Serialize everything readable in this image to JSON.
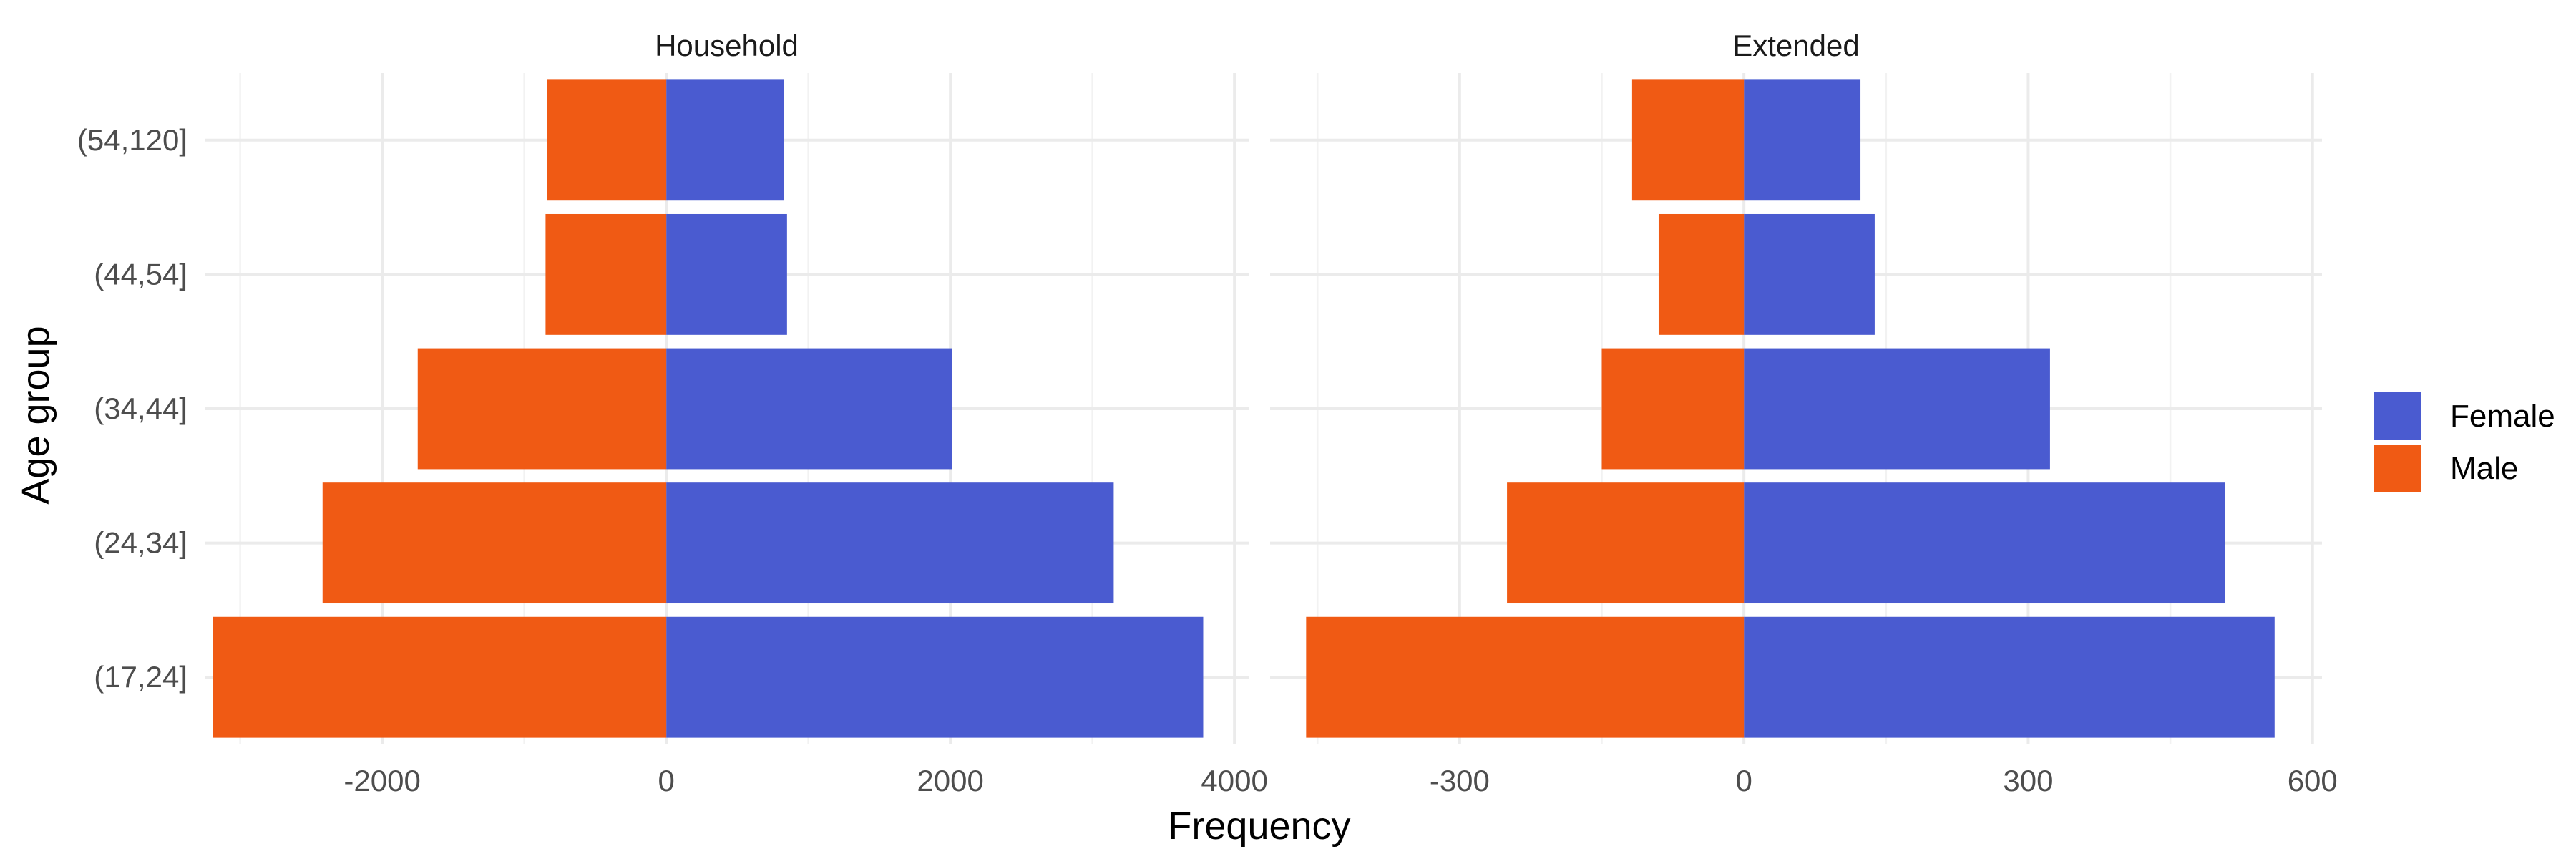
{
  "chart_data": {
    "type": "bar",
    "orientation": "horizontal",
    "subtype": "population-pyramid",
    "xlabel": "Frequency",
    "ylabel": "Age group",
    "categories": [
      "(17,24]",
      "(24,34]",
      "(34,44]",
      "(44,54]",
      "(54,120]"
    ],
    "legend": {
      "placement": "right",
      "entries": [
        {
          "name": "Female",
          "color": "#4a5bd0"
        },
        {
          "name": "Male",
          "color": "#f05a14"
        }
      ]
    },
    "grid": true,
    "panels": [
      {
        "title": "Household",
        "xlim": [
          -3250,
          4100
        ],
        "xticks": [
          -2000,
          0,
          2000,
          4000
        ],
        "xtick_labels": [
          "-2000",
          "0",
          "2000",
          "4000"
        ],
        "series": [
          {
            "name": "Female",
            "values": [
              3780,
              3150,
              2010,
              850,
              830
            ]
          },
          {
            "name": "Male",
            "values": [
              -3190,
              -2420,
              -1750,
              -850,
              -840
            ]
          }
        ]
      },
      {
        "title": "Extended",
        "xlim": [
          -500,
          610
        ],
        "xticks": [
          -300,
          0,
          300,
          600
        ],
        "xtick_labels": [
          "-300",
          "0",
          "300",
          "600"
        ],
        "series": [
          {
            "name": "Female",
            "values": [
              560,
              508,
              323,
              138,
              123
            ]
          },
          {
            "name": "Male",
            "values": [
              -462,
              -250,
              -150,
              -90,
              -118
            ]
          }
        ]
      }
    ]
  }
}
